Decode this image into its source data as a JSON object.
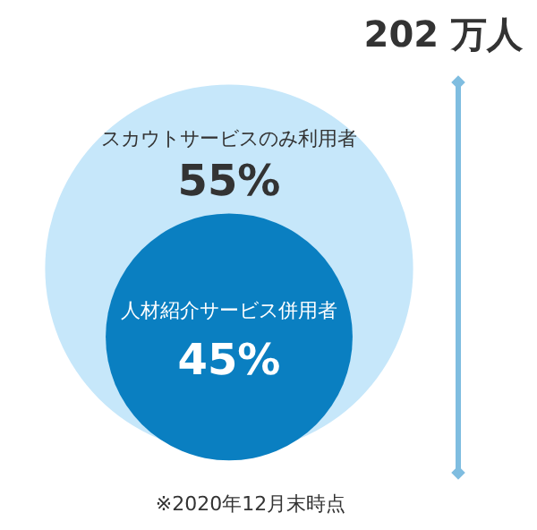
{
  "chart_data": {
    "type": "other",
    "categories": [
      "スカウトサービスのみ利用者",
      "人材紹介サービス併用者"
    ],
    "values": [
      55,
      45
    ],
    "value_labels": [
      "55%",
      "45%"
    ],
    "colors": [
      "#c6e7fa",
      "#0a7fc1"
    ],
    "annotations": [
      "202 万人",
      "※2020年12月末時点"
    ]
  }
}
